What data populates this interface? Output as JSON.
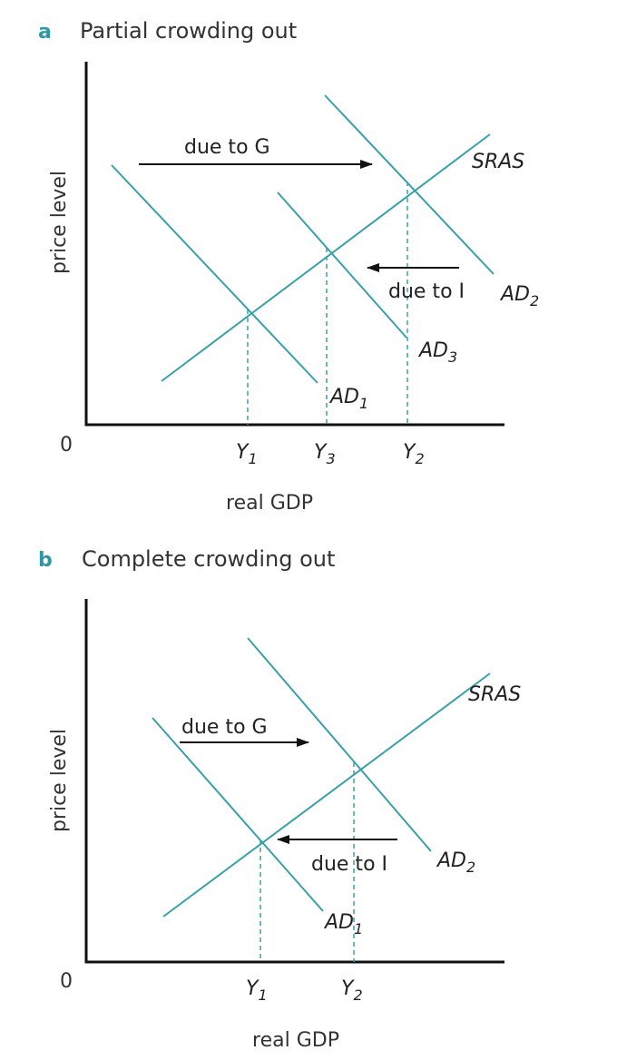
{
  "panel_a": {
    "letter": "a",
    "title": "Partial crowding out",
    "y_axis_title": "price level",
    "x_axis_title": "real GDP",
    "origin": "0",
    "sras": "SRAS",
    "ad1": {
      "base": "AD",
      "sub": "1"
    },
    "ad2": {
      "base": "AD",
      "sub": "2"
    },
    "ad3": {
      "base": "AD",
      "sub": "3"
    },
    "y1": {
      "base": "Y",
      "sub": "1"
    },
    "y3": {
      "base": "Y",
      "sub": "3"
    },
    "y2": {
      "base": "Y",
      "sub": "2"
    },
    "arrow_g": "due to G",
    "arrow_i": "due to I"
  },
  "panel_b": {
    "letter": "b",
    "title": "Complete crowding out",
    "y_axis_title": "price level",
    "x_axis_title": "real GDP",
    "origin": "0",
    "sras": "SRAS",
    "ad1": {
      "base": "AD",
      "sub": "1"
    },
    "ad2": {
      "base": "AD",
      "sub": "2"
    },
    "y1": {
      "base": "Y",
      "sub": "1"
    },
    "y2": {
      "base": "Y",
      "sub": "2"
    },
    "arrow_g": "due to G",
    "arrow_i": "due to I"
  },
  "colors": {
    "curve": "#3aa0a8",
    "accent": "#2f98a6",
    "axis": "#111111"
  }
}
